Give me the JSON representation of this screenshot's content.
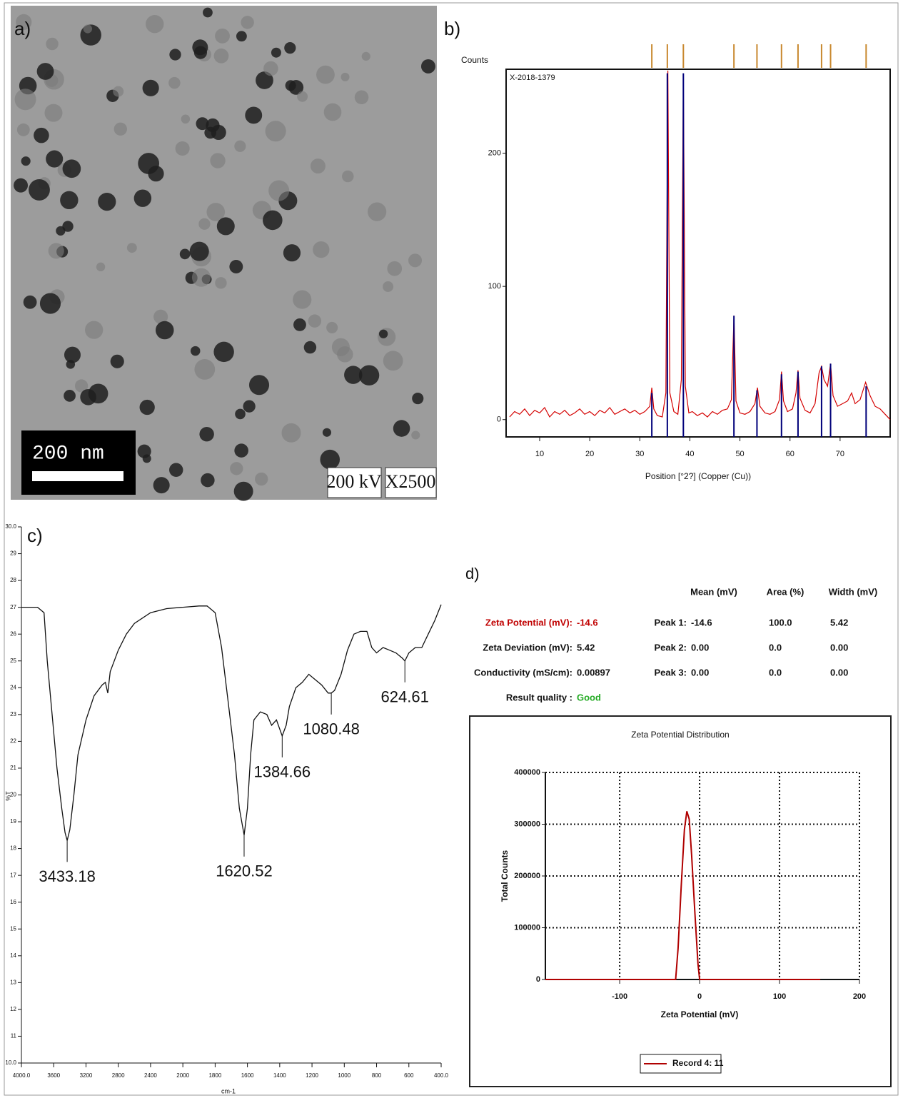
{
  "image_panel": {
    "label": "a)",
    "scale_bar": "200 nm",
    "voltage": "200 kV",
    "magnification": "X2500"
  },
  "chart_data": [
    {
      "type": "line",
      "label": "b)",
      "ylabel": "Counts",
      "xlabel": "Position [°2?] (Copper (Cu))",
      "annotation": "X-2018-1379",
      "color": "#d40000",
      "grid": false,
      "xlim": [
        3.3,
        80
      ],
      "ylim": [
        -13,
        263
      ],
      "xticks": [
        10,
        20,
        30,
        40,
        50,
        60,
        70
      ],
      "yticks": [
        0,
        100,
        200
      ],
      "x": [
        4,
        5,
        6,
        7,
        8,
        9,
        10,
        11,
        12,
        13,
        14,
        15,
        16,
        17,
        18,
        19,
        20,
        21,
        22,
        23,
        24,
        25,
        26,
        27,
        28,
        29,
        30,
        31,
        32,
        32.4,
        32.8,
        33.5,
        34.5,
        35.2,
        35.6,
        36.0,
        36.8,
        37.6,
        38.3,
        38.7,
        39.1,
        39.8,
        40.5,
        41.5,
        42.5,
        43.5,
        44.5,
        45.5,
        46.5,
        47.5,
        48.3,
        48.8,
        49.2,
        50,
        51,
        52,
        53,
        53.5,
        54,
        55,
        56,
        57,
        57.9,
        58.3,
        58.7,
        59.5,
        60.5,
        61.2,
        61.6,
        62,
        63,
        64,
        65,
        65.8,
        66.3,
        66.8,
        67.5,
        68.1,
        68.6,
        69.5,
        70.5,
        71.5,
        72.3,
        73,
        74,
        75.1,
        76,
        77,
        78,
        79,
        80
      ],
      "values": [
        2,
        6,
        4,
        8,
        3,
        7,
        5,
        9,
        2,
        6,
        4,
        7,
        3,
        5,
        8,
        4,
        6,
        3,
        7,
        5,
        9,
        4,
        6,
        8,
        5,
        7,
        4,
        6,
        10,
        24,
        8,
        3,
        2,
        20,
        262,
        20,
        6,
        4,
        30,
        258,
        25,
        5,
        6,
        3,
        5,
        2,
        6,
        4,
        7,
        8,
        15,
        78,
        14,
        5,
        4,
        6,
        12,
        24,
        10,
        5,
        4,
        6,
        15,
        36,
        14,
        6,
        8,
        20,
        37,
        16,
        7,
        5,
        12,
        35,
        40,
        30,
        25,
        42,
        18,
        10,
        12,
        14,
        20,
        12,
        15,
        28,
        18,
        10,
        8,
        4,
        0
      ],
      "reference_color": "#00007a",
      "marker_color": "#c8882e",
      "reference_x": [
        32.4,
        35.5,
        38.7,
        48.8,
        53.4,
        58.3,
        61.6,
        66.3,
        68.1,
        75.2
      ],
      "reference_values": [
        20,
        260,
        260,
        78,
        22,
        34,
        36,
        40,
        42,
        25
      ]
    },
    {
      "type": "line",
      "label": "c)",
      "ylabel": "%T",
      "xlabel": "cm-1",
      "color": "#111111",
      "grid": false,
      "xlim": [
        4000,
        400
      ],
      "ylim": [
        10,
        30
      ],
      "xticks": [
        {
          "value": 4000,
          "label": "4000.0"
        },
        3600,
        3200,
        2800,
        2400,
        2000,
        1800,
        1600,
        1400,
        1200,
        1000,
        800,
        600,
        {
          "value": 400,
          "label": "400.0"
        }
      ],
      "yticks": [
        {
          "value": 10,
          "label": "10.0"
        },
        11,
        12,
        13,
        14,
        15,
        16,
        17,
        18,
        19,
        20,
        21,
        22,
        23,
        24,
        25,
        26,
        27,
        28,
        29,
        {
          "value": 30,
          "label": "30.0"
        }
      ],
      "x": [
        4000,
        3800,
        3720,
        3680,
        3620,
        3560,
        3500,
        3460,
        3433.18,
        3400,
        3350,
        3300,
        3200,
        3100,
        3000,
        2960,
        2930,
        2900,
        2800,
        2700,
        2600,
        2400,
        2200,
        2000,
        1900,
        1850,
        1800,
        1760,
        1720,
        1680,
        1650,
        1620.52,
        1600,
        1580,
        1560,
        1520,
        1480,
        1450,
        1420,
        1384.66,
        1360,
        1340,
        1300,
        1260,
        1220,
        1180,
        1140,
        1100,
        1080.48,
        1060,
        1020,
        980,
        940,
        900,
        860,
        830,
        800,
        760,
        720,
        680,
        640,
        624.61,
        600,
        560,
        520,
        480,
        440,
        400
      ],
      "values": [
        27,
        27,
        26.8,
        25,
        23,
        21,
        19.5,
        18.6,
        18.3,
        18.7,
        20,
        21.5,
        22.8,
        23.7,
        24.1,
        24.2,
        23.8,
        24.6,
        25.4,
        26,
        26.4,
        26.8,
        26.95,
        27,
        27.05,
        27.05,
        26.8,
        25.5,
        23.5,
        21.5,
        19.5,
        18.5,
        19.5,
        21.5,
        22.8,
        23.1,
        23,
        22.6,
        22.8,
        22.2,
        22.6,
        23.3,
        24,
        24.2,
        24.5,
        24.3,
        24.1,
        23.8,
        23.8,
        23.9,
        24.5,
        25.4,
        26,
        26.1,
        26.1,
        25.5,
        25.3,
        25.5,
        25.4,
        25.3,
        25.1,
        25,
        25.3,
        25.5,
        25.5,
        26,
        26.5,
        27.1
      ],
      "annotations": [
        {
          "label": "3433.18",
          "x": 3433.18,
          "y": 18.3
        },
        {
          "label": "1620.52",
          "x": 1620.52,
          "y": 18.5
        },
        {
          "label": "1384.66",
          "x": 1384.66,
          "y": 22.2
        },
        {
          "label": "1080.48",
          "x": 1080.48,
          "y": 23.8
        },
        {
          "label": "624.61",
          "x": 624.61,
          "y": 25
        }
      ]
    },
    {
      "type": "line",
      "label": "d)",
      "title": "Zeta Potential Distribution",
      "xlabel": "Zeta Potential (mV)",
      "ylabel": "Total Counts",
      "grid": true,
      "xlim": [
        -193,
        200
      ],
      "ylim": [
        0,
        400000
      ],
      "xticks": [
        -100,
        0,
        100,
        200
      ],
      "yticks": [
        0,
        100000,
        200000,
        300000,
        400000
      ],
      "x": [
        -193,
        -30,
        -27,
        -23,
        -19,
        -16,
        -13,
        -10,
        -6,
        -2,
        0,
        151
      ],
      "series": [
        {
          "name": "Record 4: 11",
          "color": "#b00000",
          "values": [
            0,
            0,
            60000,
            180000,
            290000,
            325000,
            310000,
            240000,
            130000,
            30000,
            0,
            0
          ]
        }
      ]
    }
  ],
  "zeta_table": {
    "columns": [
      "Mean (mV)",
      "Area (%)",
      "Width (mV)"
    ],
    "summary": [
      [
        "Zeta Potential (mV):",
        "-14.6"
      ],
      [
        "Zeta Deviation (mV):",
        "5.42"
      ],
      [
        "Conductivity (mS/cm):",
        "0.00897"
      ],
      [
        "Result quality :",
        "Good"
      ]
    ],
    "peaks": [
      [
        "Peak 1:",
        "-14.6",
        "100.0",
        "5.42"
      ],
      [
        "Peak 2:",
        "0.00",
        "0.0",
        "0.00"
      ],
      [
        "Peak 3:",
        "0.00",
        "0.0",
        "0.00"
      ]
    ]
  }
}
